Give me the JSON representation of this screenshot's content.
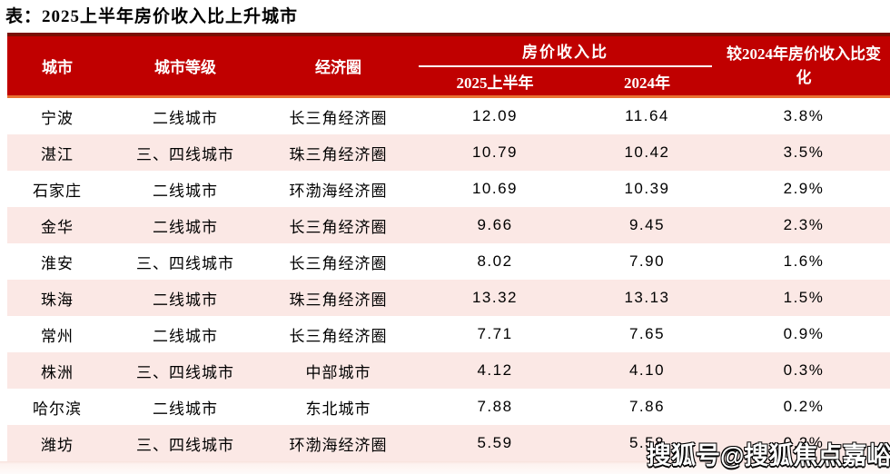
{
  "title": "表：2025上半年房价收入比上升城市",
  "watermark": "搜狐号@搜狐焦点嘉峪关站",
  "colors": {
    "header_red": "#C00000",
    "header_top_strip": "#7A0F04",
    "header_divider_orange": "#E97132",
    "row_alt_pink": "#FBE8E5",
    "header_text": "#FFFFFF",
    "body_text": "#000000"
  },
  "table": {
    "headers": {
      "city": "城市",
      "tier": "城市等级",
      "circle": "经济圈",
      "ratio_group": "房价收入比",
      "sub_2025": "2025上半年",
      "sub_2024": "2024年",
      "change": "较2024年房价收入比变化"
    },
    "rows": [
      {
        "city": "宁波",
        "tier": "二线城市",
        "circle": "长三角经济圈",
        "ratio_2025": "12.09",
        "ratio_2024": "11.64",
        "change": "3.8%"
      },
      {
        "city": "湛江",
        "tier": "三、四线城市",
        "circle": "珠三角经济圈",
        "ratio_2025": "10.79",
        "ratio_2024": "10.42",
        "change": "3.5%"
      },
      {
        "city": "石家庄",
        "tier": "二线城市",
        "circle": "环渤海经济圈",
        "ratio_2025": "10.69",
        "ratio_2024": "10.39",
        "change": "2.9%"
      },
      {
        "city": "金华",
        "tier": "二线城市",
        "circle": "长三角经济圈",
        "ratio_2025": "9.66",
        "ratio_2024": "9.45",
        "change": "2.3%"
      },
      {
        "city": "淮安",
        "tier": "三、四线城市",
        "circle": "长三角经济圈",
        "ratio_2025": "8.02",
        "ratio_2024": "7.90",
        "change": "1.6%"
      },
      {
        "city": "珠海",
        "tier": "二线城市",
        "circle": "珠三角经济圈",
        "ratio_2025": "13.32",
        "ratio_2024": "13.13",
        "change": "1.5%"
      },
      {
        "city": "常州",
        "tier": "二线城市",
        "circle": "长三角经济圈",
        "ratio_2025": "7.71",
        "ratio_2024": "7.65",
        "change": "0.9%"
      },
      {
        "city": "株洲",
        "tier": "三、四线城市",
        "circle": "中部城市",
        "ratio_2025": "4.12",
        "ratio_2024": "4.10",
        "change": "0.3%"
      },
      {
        "city": "哈尔滨",
        "tier": "二线城市",
        "circle": "东北城市",
        "ratio_2025": "7.88",
        "ratio_2024": "7.86",
        "change": "0.2%"
      },
      {
        "city": "潍坊",
        "tier": "三、四线城市",
        "circle": "环渤海经济圈",
        "ratio_2025": "5.59",
        "ratio_2024": "5.58",
        "change": "0.2%"
      }
    ]
  },
  "chart_data": {
    "type": "table",
    "title": "表：2025上半年房价收入比上升城市",
    "columns": [
      "城市",
      "城市等级",
      "经济圈",
      "房价收入比 2025上半年",
      "房价收入比 2024年",
      "较2024年房价收入比变化"
    ],
    "rows": [
      [
        "宁波",
        "二线城市",
        "长三角经济圈",
        12.09,
        11.64,
        "3.8%"
      ],
      [
        "湛江",
        "三、四线城市",
        "珠三角经济圈",
        10.79,
        10.42,
        "3.5%"
      ],
      [
        "石家庄",
        "二线城市",
        "环渤海经济圈",
        10.69,
        10.39,
        "2.9%"
      ],
      [
        "金华",
        "二线城市",
        "长三角经济圈",
        9.66,
        9.45,
        "2.3%"
      ],
      [
        "淮安",
        "三、四线城市",
        "长三角经济圈",
        8.02,
        7.9,
        "1.6%"
      ],
      [
        "珠海",
        "二线城市",
        "珠三角经济圈",
        13.32,
        13.13,
        "1.5%"
      ],
      [
        "常州",
        "二线城市",
        "长三角经济圈",
        7.71,
        7.65,
        "0.9%"
      ],
      [
        "株洲",
        "三、四线城市",
        "中部城市",
        4.12,
        4.1,
        "0.3%"
      ],
      [
        "哈尔滨",
        "二线城市",
        "东北城市",
        7.88,
        7.86,
        "0.2%"
      ],
      [
        "潍坊",
        "三、四线城市",
        "环渤海经济圈",
        5.59,
        5.58,
        "0.2%"
      ]
    ]
  }
}
